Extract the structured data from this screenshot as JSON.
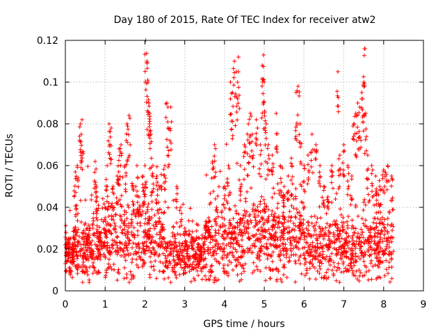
{
  "chart_data": {
    "type": "scatter",
    "title": "Day 180 of 2015, Rate Of TEC Index for receiver atw2",
    "xlabel": "GPS time / hours",
    "ylabel": "ROTI / TECUs",
    "xlim": [
      0,
      9
    ],
    "ylim": [
      0,
      0.12
    ],
    "x_ticks": [
      0,
      1,
      2,
      3,
      4,
      5,
      6,
      7,
      8,
      9
    ],
    "x_tick_labels": [
      "0",
      "1",
      "2",
      "3",
      "4",
      "5",
      "6",
      "7",
      "8",
      "9"
    ],
    "y_ticks": [
      0,
      0.02,
      0.04,
      0.06,
      0.08,
      0.1,
      0.12
    ],
    "y_tick_labels": [
      "0",
      "0.02",
      "0.04",
      "0.06",
      "0.08",
      "0.1",
      "0.12"
    ],
    "grid": true,
    "marker": "+",
    "color": "#ff0000",
    "series": [
      {
        "name": "ROTI",
        "points": [
          [
            0.0,
            0.022
          ],
          [
            0.0,
            0.013
          ],
          [
            0.05,
            0.018
          ],
          [
            0.08,
            0.025
          ],
          [
            0.12,
            0.011
          ],
          [
            0.18,
            0.022
          ],
          [
            0.22,
            0.03
          ],
          [
            0.25,
            0.057
          ],
          [
            0.28,
            0.041
          ],
          [
            0.3,
            0.06
          ],
          [
            0.38,
            0.08
          ],
          [
            0.4,
            0.075
          ],
          [
            0.42,
            0.082
          ],
          [
            0.55,
            0.03
          ],
          [
            0.6,
            0.03
          ],
          [
            0.65,
            0.02
          ],
          [
            0.75,
            0.062
          ],
          [
            0.78,
            0.05
          ],
          [
            0.8,
            0.045
          ],
          [
            0.85,
            0.02
          ],
          [
            0.9,
            0.028
          ],
          [
            1.0,
            0.035
          ],
          [
            1.05,
            0.06
          ],
          [
            1.1,
            0.08
          ],
          [
            1.15,
            0.078
          ],
          [
            1.2,
            0.05
          ],
          [
            1.3,
            0.055
          ],
          [
            1.35,
            0.068
          ],
          [
            1.4,
            0.07
          ],
          [
            1.5,
            0.06
          ],
          [
            1.55,
            0.08
          ],
          [
            1.6,
            0.084
          ],
          [
            1.7,
            0.05
          ],
          [
            1.8,
            0.06
          ],
          [
            1.85,
            0.045
          ],
          [
            1.95,
            0.055
          ],
          [
            2.0,
            0.06
          ],
          [
            2.02,
            0.12
          ],
          [
            2.05,
            0.11
          ],
          [
            2.08,
            0.1
          ],
          [
            2.1,
            0.09
          ],
          [
            2.12,
            0.085
          ],
          [
            2.15,
            0.075
          ],
          [
            2.2,
            0.06
          ],
          [
            2.3,
            0.055
          ],
          [
            2.4,
            0.05
          ],
          [
            2.5,
            0.06
          ],
          [
            2.55,
            0.09
          ],
          [
            2.58,
            0.078
          ],
          [
            2.65,
            0.088
          ],
          [
            2.8,
            0.05
          ],
          [
            2.9,
            0.04
          ],
          [
            3.0,
            0.03
          ],
          [
            3.2,
            0.025
          ],
          [
            3.4,
            0.02
          ],
          [
            3.5,
            0.03
          ],
          [
            3.6,
            0.035
          ],
          [
            3.7,
            0.062
          ],
          [
            3.75,
            0.07
          ],
          [
            3.8,
            0.04
          ],
          [
            4.0,
            0.05
          ],
          [
            4.1,
            0.06
          ],
          [
            4.15,
            0.1
          ],
          [
            4.2,
            0.095
          ],
          [
            4.25,
            0.11
          ],
          [
            4.3,
            0.105
          ],
          [
            4.35,
            0.112
          ],
          [
            4.4,
            0.06
          ],
          [
            4.5,
            0.07
          ],
          [
            4.6,
            0.08
          ],
          [
            4.65,
            0.085
          ],
          [
            4.7,
            0.075
          ],
          [
            4.8,
            0.082
          ],
          [
            4.9,
            0.07
          ],
          [
            4.95,
            0.108
          ],
          [
            4.98,
            0.113
          ],
          [
            5.0,
            0.1
          ],
          [
            5.05,
            0.08
          ],
          [
            5.1,
            0.07
          ],
          [
            5.2,
            0.065
          ],
          [
            5.3,
            0.085
          ],
          [
            5.4,
            0.06
          ],
          [
            5.5,
            0.05
          ],
          [
            5.6,
            0.055
          ],
          [
            5.7,
            0.06
          ],
          [
            5.8,
            0.095
          ],
          [
            5.85,
            0.098
          ],
          [
            5.9,
            0.08
          ],
          [
            6.0,
            0.06
          ],
          [
            6.1,
            0.065
          ],
          [
            6.2,
            0.075
          ],
          [
            6.3,
            0.07
          ],
          [
            6.4,
            0.06
          ],
          [
            6.5,
            0.05
          ],
          [
            6.6,
            0.045
          ],
          [
            6.7,
            0.06
          ],
          [
            6.85,
            0.105
          ],
          [
            6.9,
            0.065
          ],
          [
            7.0,
            0.07
          ],
          [
            7.1,
            0.06
          ],
          [
            7.2,
            0.055
          ],
          [
            7.25,
            0.08
          ],
          [
            7.3,
            0.085
          ],
          [
            7.35,
            0.09
          ],
          [
            7.4,
            0.088
          ],
          [
            7.45,
            0.095
          ],
          [
            7.5,
            0.1
          ],
          [
            7.52,
            0.116
          ],
          [
            7.55,
            0.085
          ],
          [
            7.6,
            0.065
          ],
          [
            7.7,
            0.06
          ],
          [
            7.8,
            0.055
          ],
          [
            7.9,
            0.05
          ],
          [
            8.0,
            0.058
          ],
          [
            8.1,
            0.06
          ],
          [
            8.2,
            0.055
          ]
        ],
        "band_segments": [
          {
            "x": [
              0.0,
              0.25
            ],
            "y_mean": 0.018,
            "y_spread": 0.008
          },
          {
            "x": [
              0.25,
              1.0
            ],
            "y_mean": 0.02,
            "y_spread": 0.012
          },
          {
            "x": [
              1.0,
              2.5
            ],
            "y_mean": 0.025,
            "y_spread": 0.016
          },
          {
            "x": [
              2.5,
              3.5
            ],
            "y_mean": 0.017,
            "y_spread": 0.009
          },
          {
            "x": [
              3.5,
              4.5
            ],
            "y_mean": 0.023,
            "y_spread": 0.015
          },
          {
            "x": [
              4.5,
              6.0
            ],
            "y_mean": 0.026,
            "y_spread": 0.016
          },
          {
            "x": [
              6.0,
              7.0
            ],
            "y_mean": 0.02,
            "y_spread": 0.013
          },
          {
            "x": [
              7.0,
              8.25
            ],
            "y_mean": 0.021,
            "y_spread": 0.013
          }
        ]
      }
    ]
  }
}
